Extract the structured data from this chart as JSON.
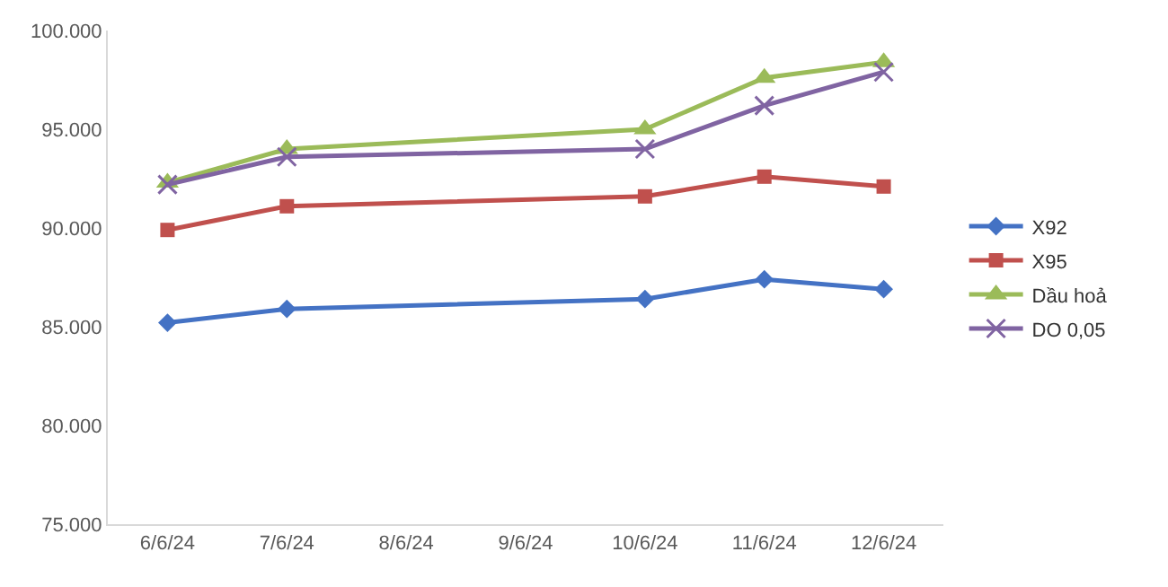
{
  "chart_data": {
    "type": "line",
    "x": [
      "--06-06",
      "--06-07",
      "--06-10",
      "--06-11",
      "--06-12"
    ],
    "xlim": [
      "--06-05T12:00",
      "--06-12T12:00"
    ],
    "xticks": [
      {
        "value": "--06-06",
        "label": "6/6/24"
      },
      {
        "value": "--06-07",
        "label": "7/6/24"
      },
      {
        "value": "--06-08",
        "label": "8/6/24"
      },
      {
        "value": "--06-09",
        "label": "9/6/24"
      },
      {
        "value": "--06-10",
        "label": "10/6/24"
      },
      {
        "value": "--06-11",
        "label": "11/6/24"
      },
      {
        "value": "--06-12",
        "label": "12/6/24"
      }
    ],
    "ylim": [
      75,
      100
    ],
    "yticks": [
      {
        "value": 75,
        "label": "75.000"
      },
      {
        "value": 80,
        "label": "80.000"
      },
      {
        "value": 85,
        "label": "85.000"
      },
      {
        "value": 90,
        "label": "90.000"
      },
      {
        "value": 95,
        "label": "95.000"
      },
      {
        "value": 100,
        "label": "100.000"
      }
    ],
    "grid": false,
    "legend": "right",
    "line_style": "solid",
    "series": [
      {
        "name": "X92",
        "color": "#4472c4",
        "marker": "diamond",
        "values": [
          85.2,
          85.9,
          86.4,
          87.4,
          86.9
        ]
      },
      {
        "name": "X95",
        "color": "#c0504d",
        "marker": "square",
        "values": [
          89.9,
          91.1,
          91.6,
          92.6,
          92.1
        ]
      },
      {
        "name": "Dầu hoả",
        "color": "#9bbb59",
        "marker": "triangle",
        "values": [
          92.3,
          94.0,
          95.0,
          97.6,
          98.4
        ]
      },
      {
        "name": "DO 0,05",
        "color": "#8064a2",
        "marker": "cross",
        "values": [
          92.2,
          93.6,
          94.0,
          96.2,
          97.9
        ]
      }
    ]
  }
}
